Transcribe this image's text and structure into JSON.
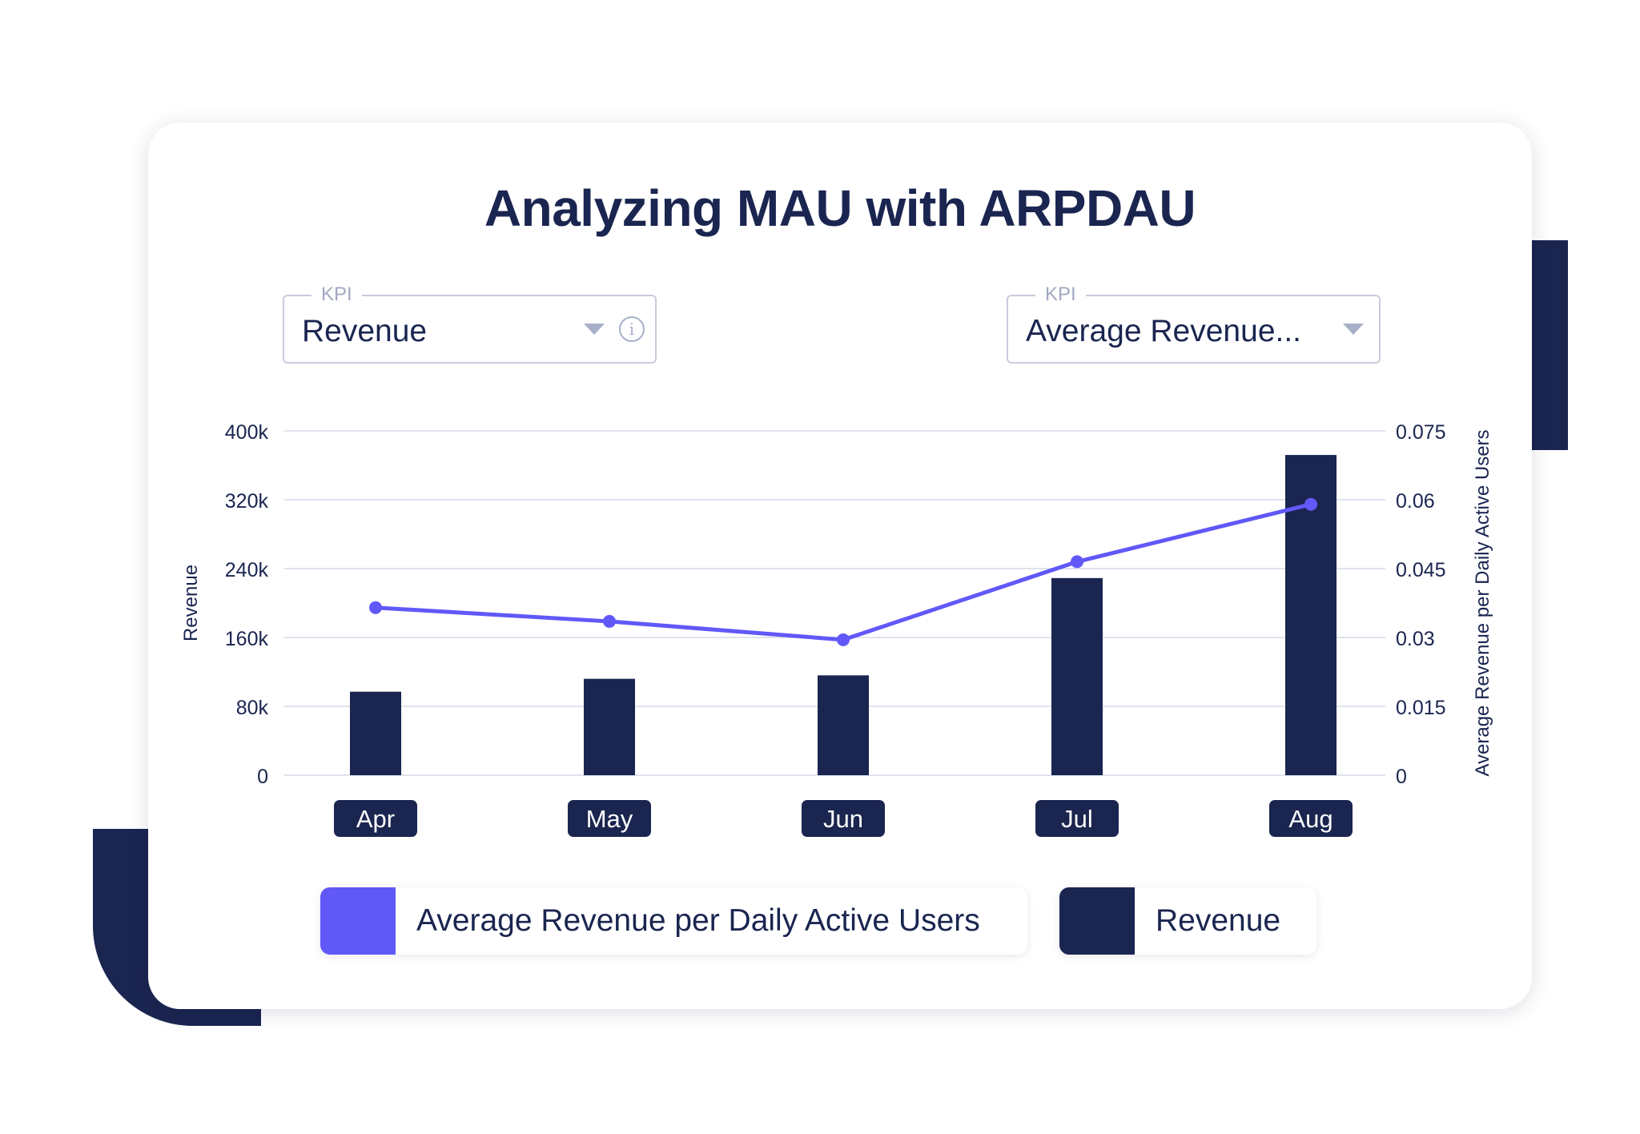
{
  "colors": {
    "navy": "#1a2550",
    "accent": "#6158f8",
    "grid": "#dfe3ee",
    "muted": "#a7b0c8"
  },
  "title": "Analyzing MAU with ARPDAU",
  "selectors": [
    {
      "label": "KPI",
      "value": "Revenue",
      "icons": [
        "chevron-down-icon",
        "info-icon"
      ]
    },
    {
      "label": "KPI",
      "value": "Average Revenue...",
      "icons": [
        "chevron-down-icon"
      ]
    }
  ],
  "info_glyph": "i",
  "chart_data": {
    "type": "bar",
    "title": "Analyzing MAU with ARPDAU",
    "categories": [
      "Apr",
      "May",
      "Jun",
      "Jul",
      "Aug"
    ],
    "series": [
      {
        "name": "Revenue",
        "type": "bar",
        "axis": "left",
        "color": "#1a2550",
        "values": [
          97000,
          112000,
          116000,
          229000,
          372000
        ]
      },
      {
        "name": "Average Revenue per Daily Active Users",
        "type": "line",
        "axis": "right",
        "color": "#6158f8",
        "values": [
          0.0365,
          0.0335,
          0.0295,
          0.0465,
          0.059
        ]
      }
    ],
    "left_axis": {
      "label": "Revenue",
      "range": [
        0,
        400000
      ],
      "ticks": [
        0,
        80000,
        160000,
        240000,
        320000,
        400000
      ],
      "tick_labels": [
        "0",
        "80k",
        "160k",
        "240k",
        "320k",
        "400k"
      ]
    },
    "right_axis": {
      "label": "Average Revenue per Daily Active Users",
      "range": [
        0,
        0.075
      ],
      "ticks": [
        0,
        0.015,
        0.03,
        0.045,
        0.06,
        0.075
      ],
      "tick_labels": [
        "0",
        "0.015",
        "0.03",
        "0.045",
        "0.06",
        "0.075"
      ]
    },
    "grid": true,
    "legend": {
      "position": "bottom",
      "entries": [
        "Average Revenue per Daily Active Users",
        "Revenue"
      ]
    }
  }
}
